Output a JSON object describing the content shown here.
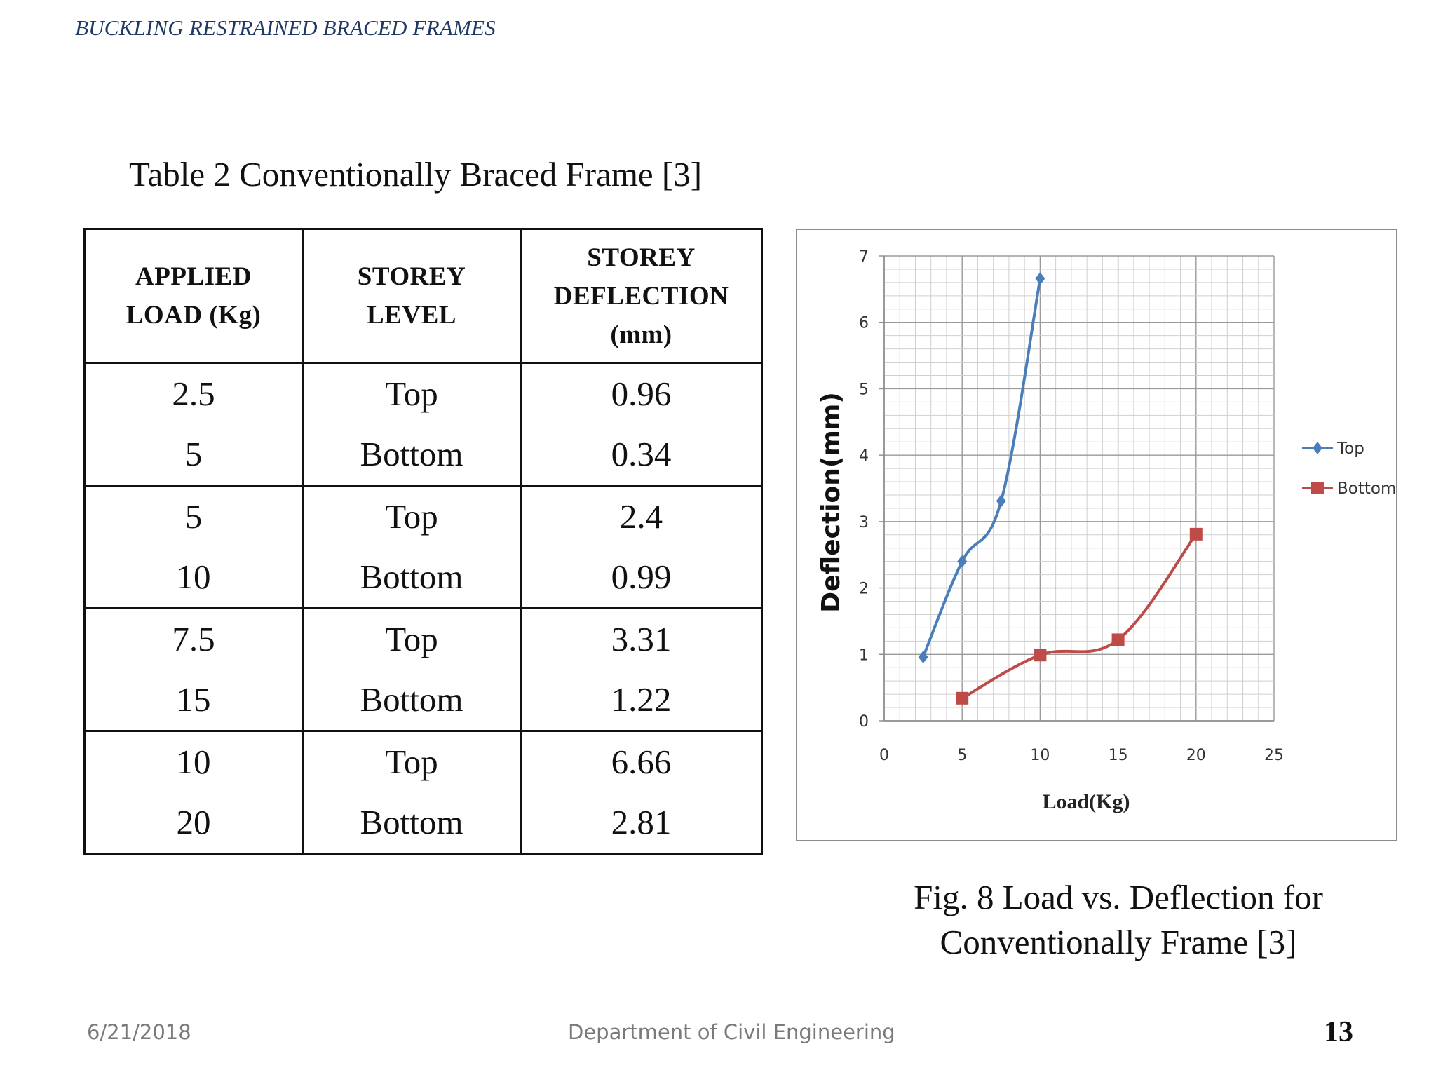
{
  "header": {
    "title": "BUCKLING RESTRAINED BRACED FRAMES"
  },
  "table": {
    "caption": "Table 2 Conventionally Braced Frame  [3]",
    "headers": [
      [
        "APPLIED",
        "LOAD (Kg)"
      ],
      [
        "STOREY",
        "LEVEL"
      ],
      [
        "STOREY",
        "DEFLECTION",
        "(mm)"
      ]
    ],
    "rows": [
      {
        "loads": [
          "2.5",
          "5"
        ],
        "levels": [
          "Top",
          "Bottom"
        ],
        "deflections": [
          "0.96",
          "0.34"
        ]
      },
      {
        "loads": [
          "5",
          "10"
        ],
        "levels": [
          "Top",
          "Bottom"
        ],
        "deflections": [
          "2.4",
          "0.99"
        ]
      },
      {
        "loads": [
          "7.5",
          "15"
        ],
        "levels": [
          "Top",
          "Bottom"
        ],
        "deflections": [
          "3.31",
          "1.22"
        ]
      },
      {
        "loads": [
          "10",
          "20"
        ],
        "levels": [
          "Top",
          "Bottom"
        ],
        "deflections": [
          "6.66",
          "2.81"
        ]
      }
    ]
  },
  "chart_data": {
    "type": "line",
    "title": "",
    "xlabel": "Load(Kg)",
    "ylabel": "Deflection(mm)",
    "xlim": [
      0,
      25
    ],
    "ylim": [
      0,
      7
    ],
    "xticks": [
      "0",
      "5",
      "10",
      "15",
      "20",
      "25"
    ],
    "yticks": [
      "0",
      "1",
      "2",
      "3",
      "4",
      "5",
      "6",
      "7"
    ],
    "grid": true,
    "legend_position": "right",
    "series": [
      {
        "name": "Top",
        "color": "#4a7ebb",
        "marker": "diamond",
        "x": [
          2.5,
          5,
          7.5,
          10
        ],
        "y": [
          0.96,
          2.4,
          3.31,
          6.66
        ]
      },
      {
        "name": "Bottom",
        "color": "#be4b48",
        "marker": "square",
        "x": [
          5,
          10,
          15,
          20
        ],
        "y": [
          0.34,
          0.99,
          1.22,
          2.81
        ]
      }
    ]
  },
  "figure": {
    "caption_line1": "Fig. 8 Load vs. Deflection for",
    "caption_line2": "Conventionally Frame [3]"
  },
  "footer": {
    "date": "6/21/2018",
    "department": "Department of Civil Engineering",
    "page_number": "13"
  }
}
